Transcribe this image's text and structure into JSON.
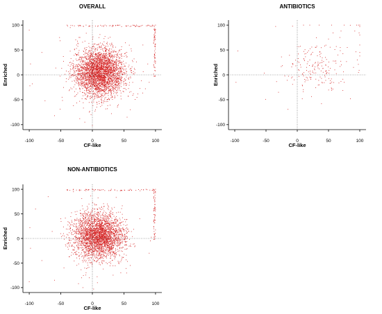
{
  "figure": {
    "colors": {
      "point": "#d42020",
      "axis": "#000000",
      "refline": "#555555"
    }
  },
  "chart_data": [
    {
      "type": "scatter",
      "title": "OVERALL",
      "xlabel": "CF-like",
      "ylabel": "Enriched",
      "xlim": [
        -110,
        110
      ],
      "ylim": [
        -110,
        110
      ],
      "xticks": [
        -100,
        -50,
        0,
        50,
        100
      ],
      "yticks": [
        -100,
        -50,
        0,
        50,
        100
      ],
      "reference_lines": {
        "x": 0,
        "y": 0,
        "style": "dotted"
      },
      "grid": false,
      "legend": "none",
      "distribution": {
        "n_points": 3200,
        "center": [
          12,
          5
        ],
        "spread": [
          20,
          24
        ],
        "saturation_band_at": 100
      },
      "points": [
        [
          -100,
          90
        ],
        [
          -98,
          22
        ],
        [
          -99,
          -22
        ],
        [
          -95,
          -18
        ],
        [
          -80,
          45
        ],
        [
          -75,
          -52
        ],
        [
          -60,
          -82
        ],
        [
          -52,
          75
        ],
        [
          -48,
          -45
        ],
        [
          -35,
          95
        ],
        [
          -30,
          -62
        ],
        [
          -25,
          60
        ],
        [
          -20,
          -88
        ],
        [
          -12,
          -95
        ],
        [
          -5,
          -75
        ],
        [
          0,
          -102
        ],
        [
          5,
          -70
        ],
        [
          40,
          -62
        ],
        [
          55,
          -85
        ],
        [
          65,
          -38
        ],
        [
          80,
          60
        ],
        [
          90,
          -15
        ],
        [
          98,
          97
        ],
        [
          100,
          100
        ],
        [
          100,
          91
        ],
        [
          95,
          100
        ],
        [
          88,
          100
        ],
        [
          70,
          100
        ],
        [
          40,
          100
        ],
        [
          20,
          100
        ],
        [
          -10,
          100
        ],
        [
          -40,
          100
        ]
      ]
    },
    {
      "type": "scatter",
      "title": "ANTIBIOTICS",
      "xlabel": "CF-like",
      "ylabel": "Enriched",
      "xlim": [
        -110,
        110
      ],
      "ylim": [
        -110,
        110
      ],
      "xticks": [
        -100,
        -50,
        0,
        50,
        100
      ],
      "yticks": [
        -100,
        -50,
        0,
        50,
        100
      ],
      "reference_lines": {
        "x": 0,
        "y": 0,
        "style": "dotted"
      },
      "grid": false,
      "legend": "none",
      "distribution": {
        "n_points": 170,
        "center": [
          30,
          15
        ],
        "spread": [
          25,
          28
        ],
        "saturation_band_at": 100
      },
      "points": [
        [
          -98,
          -15
        ],
        [
          -95,
          48
        ],
        [
          -30,
          -35
        ],
        [
          -5,
          -10
        ],
        [
          5,
          20
        ],
        [
          8,
          -48
        ],
        [
          10,
          -2
        ],
        [
          12,
          42
        ],
        [
          15,
          15
        ],
        [
          18,
          6
        ],
        [
          20,
          30
        ],
        [
          22,
          -5
        ],
        [
          25,
          18
        ],
        [
          28,
          10
        ],
        [
          30,
          55
        ],
        [
          35,
          -20
        ],
        [
          40,
          25
        ],
        [
          45,
          35
        ],
        [
          50,
          72
        ],
        [
          55,
          -28
        ],
        [
          60,
          10
        ],
        [
          65,
          40
        ],
        [
          70,
          88
        ],
        [
          75,
          -15
        ],
        [
          80,
          55
        ],
        [
          85,
          -48
        ],
        [
          90,
          15
        ],
        [
          92,
          88
        ],
        [
          96,
          30
        ],
        [
          98,
          5
        ],
        [
          100,
          100
        ],
        [
          100,
          97
        ],
        [
          98,
          100
        ],
        [
          95,
          100
        ],
        [
          75,
          100
        ],
        [
          55,
          100
        ],
        [
          35,
          100
        ],
        [
          20,
          100
        ],
        [
          10,
          100
        ],
        [
          100,
          80
        ],
        [
          100,
          60
        ],
        [
          100,
          45
        ]
      ]
    },
    {
      "type": "scatter",
      "title": "NON-ANTIBIOTICS",
      "xlabel": "CF-like",
      "ylabel": "Enriched",
      "xlim": [
        -110,
        110
      ],
      "ylim": [
        -110,
        110
      ],
      "xticks": [
        -100,
        -50,
        0,
        50,
        100
      ],
      "yticks": [
        -100,
        -50,
        0,
        50,
        100
      ],
      "reference_lines": {
        "x": 0,
        "y": 0,
        "style": "dotted"
      },
      "grid": false,
      "legend": "none",
      "distribution": {
        "n_points": 3000,
        "center": [
          10,
          5
        ],
        "spread": [
          20,
          24
        ],
        "saturation_band_at": 100
      },
      "points": [
        [
          -100,
          -88
        ],
        [
          -99,
          22
        ],
        [
          -98,
          -20
        ],
        [
          -90,
          60
        ],
        [
          -80,
          -45
        ],
        [
          -70,
          85
        ],
        [
          -60,
          -85
        ],
        [
          -50,
          40
        ],
        [
          -45,
          -60
        ],
        [
          -30,
          95
        ],
        [
          -22,
          -92
        ],
        [
          -15,
          -100
        ],
        [
          -10,
          -70
        ],
        [
          -5,
          -80
        ],
        [
          2,
          -103
        ],
        [
          8,
          -90
        ],
        [
          45,
          -70
        ],
        [
          60,
          -55
        ],
        [
          75,
          40
        ],
        [
          90,
          -30
        ],
        [
          98,
          98
        ],
        [
          100,
          100
        ],
        [
          100,
          93
        ],
        [
          96,
          100
        ],
        [
          85,
          100
        ],
        [
          60,
          100
        ],
        [
          30,
          100
        ],
        [
          0,
          100
        ],
        [
          -30,
          100
        ]
      ]
    }
  ]
}
